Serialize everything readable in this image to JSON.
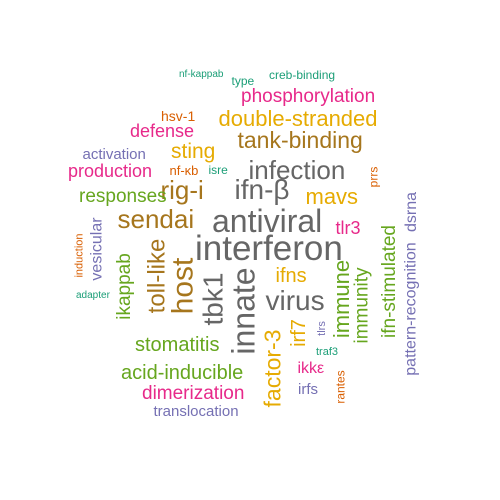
{
  "words": [
    {
      "text": "interferon",
      "color": "#666666",
      "rotated": false
    },
    {
      "text": "antiviral",
      "color": "#666666",
      "rotated": false
    },
    {
      "text": "infection",
      "color": "#666666",
      "rotated": false
    },
    {
      "text": "virus",
      "color": "#666666",
      "rotated": false
    },
    {
      "text": "innate",
      "color": "#666666",
      "rotated": true
    },
    {
      "text": "tbk1",
      "color": "#666666",
      "rotated": true
    },
    {
      "text": "ifn-β",
      "color": "#666666",
      "rotated": false
    },
    {
      "text": "tank-binding",
      "color": "#A6761D",
      "rotated": false
    },
    {
      "text": "sendai",
      "color": "#A6761D",
      "rotated": false
    },
    {
      "text": "host",
      "color": "#A6761D",
      "rotated": true
    },
    {
      "text": "rig-i",
      "color": "#A6761D",
      "rotated": false
    },
    {
      "text": "toll-like",
      "color": "#A6761D",
      "rotated": true
    },
    {
      "text": "double-stranded",
      "color": "#E6AB02",
      "rotated": false
    },
    {
      "text": "mavs",
      "color": "#E6AB02",
      "rotated": false
    },
    {
      "text": "sting",
      "color": "#E6AB02",
      "rotated": false
    },
    {
      "text": "ifns",
      "color": "#E6AB02",
      "rotated": false
    },
    {
      "text": "factor-3",
      "color": "#E6AB02",
      "rotated": true
    },
    {
      "text": "irf7",
      "color": "#E6AB02",
      "rotated": true
    },
    {
      "text": "immune",
      "color": "#66A61E",
      "rotated": true
    },
    {
      "text": "immunity",
      "color": "#66A61E",
      "rotated": true
    },
    {
      "text": "ifn-stimulated",
      "color": "#66A61E",
      "rotated": true
    },
    {
      "text": "responses",
      "color": "#66A61E",
      "rotated": false
    },
    {
      "text": "ikappab",
      "color": "#66A61E",
      "rotated": true
    },
    {
      "text": "stomatitis",
      "color": "#66A61E",
      "rotated": false
    },
    {
      "text": "acid-inducible",
      "color": "#66A61E",
      "rotated": false
    },
    {
      "text": "phosphorylation",
      "color": "#E7298A",
      "rotated": false
    },
    {
      "text": "defense",
      "color": "#E7298A",
      "rotated": false
    },
    {
      "text": "production",
      "color": "#E7298A",
      "rotated": false
    },
    {
      "text": "tlr3",
      "color": "#E7298A",
      "rotated": false
    },
    {
      "text": "dimerization",
      "color": "#E7298A",
      "rotated": false
    },
    {
      "text": "ikkε",
      "color": "#E7298A",
      "rotated": false
    },
    {
      "text": "activation",
      "color": "#7570B3",
      "rotated": false
    },
    {
      "text": "vesicular",
      "color": "#7570B3",
      "rotated": true
    },
    {
      "text": "pattern-recognition",
      "color": "#7570B3",
      "rotated": true
    },
    {
      "text": "dsrna",
      "color": "#7570B3",
      "rotated": true
    },
    {
      "text": "irfs",
      "color": "#7570B3",
      "rotated": false
    },
    {
      "text": "translocation",
      "color": "#7570B3",
      "rotated": false
    },
    {
      "text": "tlrs",
      "color": "#7570B3",
      "rotated": true
    },
    {
      "text": "hsv-1",
      "color": "#D95F02",
      "rotated": false
    },
    {
      "text": "nf-κb",
      "color": "#D95F02",
      "rotated": false
    },
    {
      "text": "prrs",
      "color": "#D95F02",
      "rotated": true
    },
    {
      "text": "induction",
      "color": "#D95F02",
      "rotated": true
    },
    {
      "text": "rantes",
      "color": "#D95F02",
      "rotated": true
    },
    {
      "text": "nf-kappab",
      "color": "#1B9E77",
      "rotated": false
    },
    {
      "text": "type",
      "color": "#1B9E77",
      "rotated": false
    },
    {
      "text": "creb-binding",
      "color": "#1B9E77",
      "rotated": false
    },
    {
      "text": "isre",
      "color": "#1B9E77",
      "rotated": false
    },
    {
      "text": "adapter",
      "color": "#1B9E77",
      "rotated": false
    },
    {
      "text": "traf3",
      "color": "#1B9E77",
      "rotated": false
    }
  ]
}
